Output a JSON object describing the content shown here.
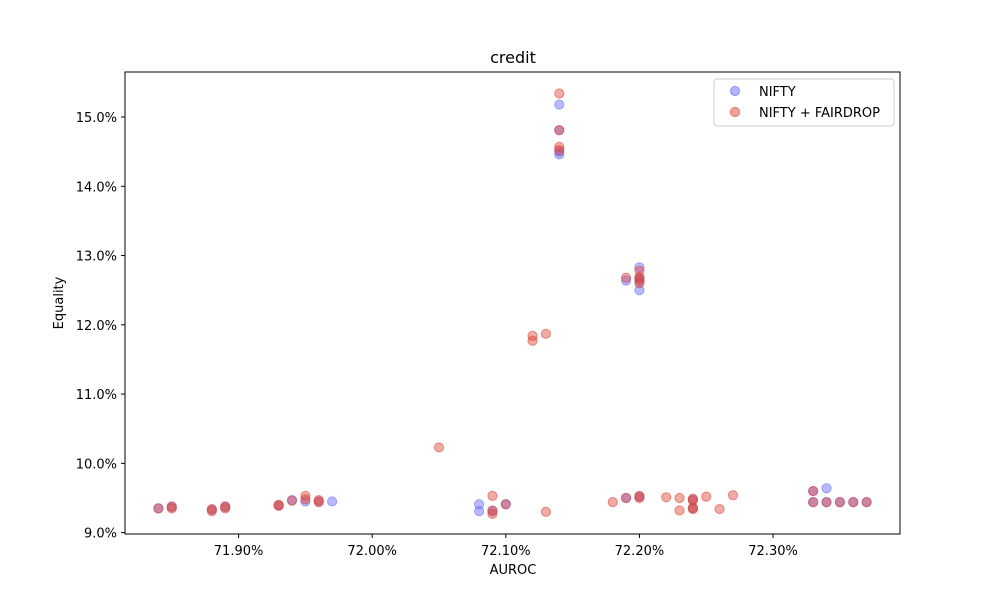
{
  "chart_data": {
    "type": "scatter",
    "title": "credit",
    "xlabel": "AUROC",
    "ylabel": "Equality",
    "xlim": [
      71.815,
      72.395
    ],
    "ylim": [
      8.98,
      15.65
    ],
    "x_ticks": [
      71.9,
      72.0,
      72.1,
      72.2,
      72.3
    ],
    "x_tick_labels": [
      "71.90%",
      "72.00%",
      "72.10%",
      "72.20%",
      "72.30%"
    ],
    "y_ticks": [
      9,
      10,
      11,
      12,
      13,
      14,
      15
    ],
    "y_tick_labels": [
      "9.0%",
      "10.0%",
      "11.0%",
      "12.0%",
      "13.0%",
      "14.0%",
      "15.0%"
    ],
    "grid": false,
    "legend_position": "top-right",
    "series": [
      {
        "name": "NIFTY",
        "color": "#6666ff",
        "points": [
          [
            71.84,
            9.35
          ],
          [
            71.85,
            9.37
          ],
          [
            71.88,
            9.33
          ],
          [
            71.89,
            9.37
          ],
          [
            71.93,
            9.39
          ],
          [
            71.94,
            9.47
          ],
          [
            71.95,
            9.45
          ],
          [
            71.96,
            9.45
          ],
          [
            71.97,
            9.45
          ],
          [
            72.08,
            9.41
          ],
          [
            72.08,
            9.31
          ],
          [
            72.09,
            9.31
          ],
          [
            72.1,
            9.41
          ],
          [
            72.14,
            15.18
          ],
          [
            72.14,
            14.81
          ],
          [
            72.14,
            14.5
          ],
          [
            72.14,
            14.46
          ],
          [
            72.19,
            9.5
          ],
          [
            72.19,
            12.64
          ],
          [
            72.2,
            12.83
          ],
          [
            72.2,
            12.68
          ],
          [
            72.2,
            12.5
          ],
          [
            72.2,
            12.63
          ],
          [
            72.2,
            9.52
          ],
          [
            72.24,
            9.48
          ],
          [
            72.24,
            9.35
          ],
          [
            72.33,
            9.6
          ],
          [
            72.33,
            9.44
          ],
          [
            72.34,
            9.64
          ],
          [
            72.34,
            9.44
          ],
          [
            72.35,
            9.44
          ],
          [
            72.36,
            9.44
          ],
          [
            72.37,
            9.44
          ]
        ]
      },
      {
        "name": "NIFTY + FAIRDROP",
        "color": "#dd4433",
        "points": [
          [
            71.84,
            9.35
          ],
          [
            71.85,
            9.35
          ],
          [
            71.85,
            9.38
          ],
          [
            71.88,
            9.31
          ],
          [
            71.88,
            9.34
          ],
          [
            71.89,
            9.35
          ],
          [
            71.89,
            9.38
          ],
          [
            71.93,
            9.39
          ],
          [
            71.93,
            9.4
          ],
          [
            71.94,
            9.46
          ],
          [
            71.95,
            9.53
          ],
          [
            71.95,
            9.48
          ],
          [
            71.96,
            9.44
          ],
          [
            71.96,
            9.47
          ],
          [
            72.05,
            10.23
          ],
          [
            72.09,
            9.53
          ],
          [
            72.09,
            9.27
          ],
          [
            72.09,
            9.32
          ],
          [
            72.1,
            9.41
          ],
          [
            72.12,
            11.84
          ],
          [
            72.12,
            11.77
          ],
          [
            72.13,
            11.87
          ],
          [
            72.13,
            9.3
          ],
          [
            72.14,
            15.34
          ],
          [
            72.14,
            14.81
          ],
          [
            72.14,
            14.57
          ],
          [
            72.14,
            14.52
          ],
          [
            72.18,
            9.44
          ],
          [
            72.19,
            9.5
          ],
          [
            72.19,
            12.68
          ],
          [
            72.2,
            12.78
          ],
          [
            72.2,
            12.69
          ],
          [
            72.2,
            12.65
          ],
          [
            72.2,
            12.6
          ],
          [
            72.2,
            9.53
          ],
          [
            72.2,
            9.5
          ],
          [
            72.22,
            9.51
          ],
          [
            72.23,
            9.5
          ],
          [
            72.23,
            9.32
          ],
          [
            72.24,
            9.49
          ],
          [
            72.24,
            9.46
          ],
          [
            72.24,
            9.36
          ],
          [
            72.24,
            9.34
          ],
          [
            72.25,
            9.52
          ],
          [
            72.26,
            9.34
          ],
          [
            72.27,
            9.54
          ],
          [
            72.33,
            9.6
          ],
          [
            72.33,
            9.44
          ],
          [
            72.34,
            9.44
          ],
          [
            72.35,
            9.44
          ],
          [
            72.36,
            9.44
          ],
          [
            72.37,
            9.44
          ]
        ]
      }
    ]
  }
}
